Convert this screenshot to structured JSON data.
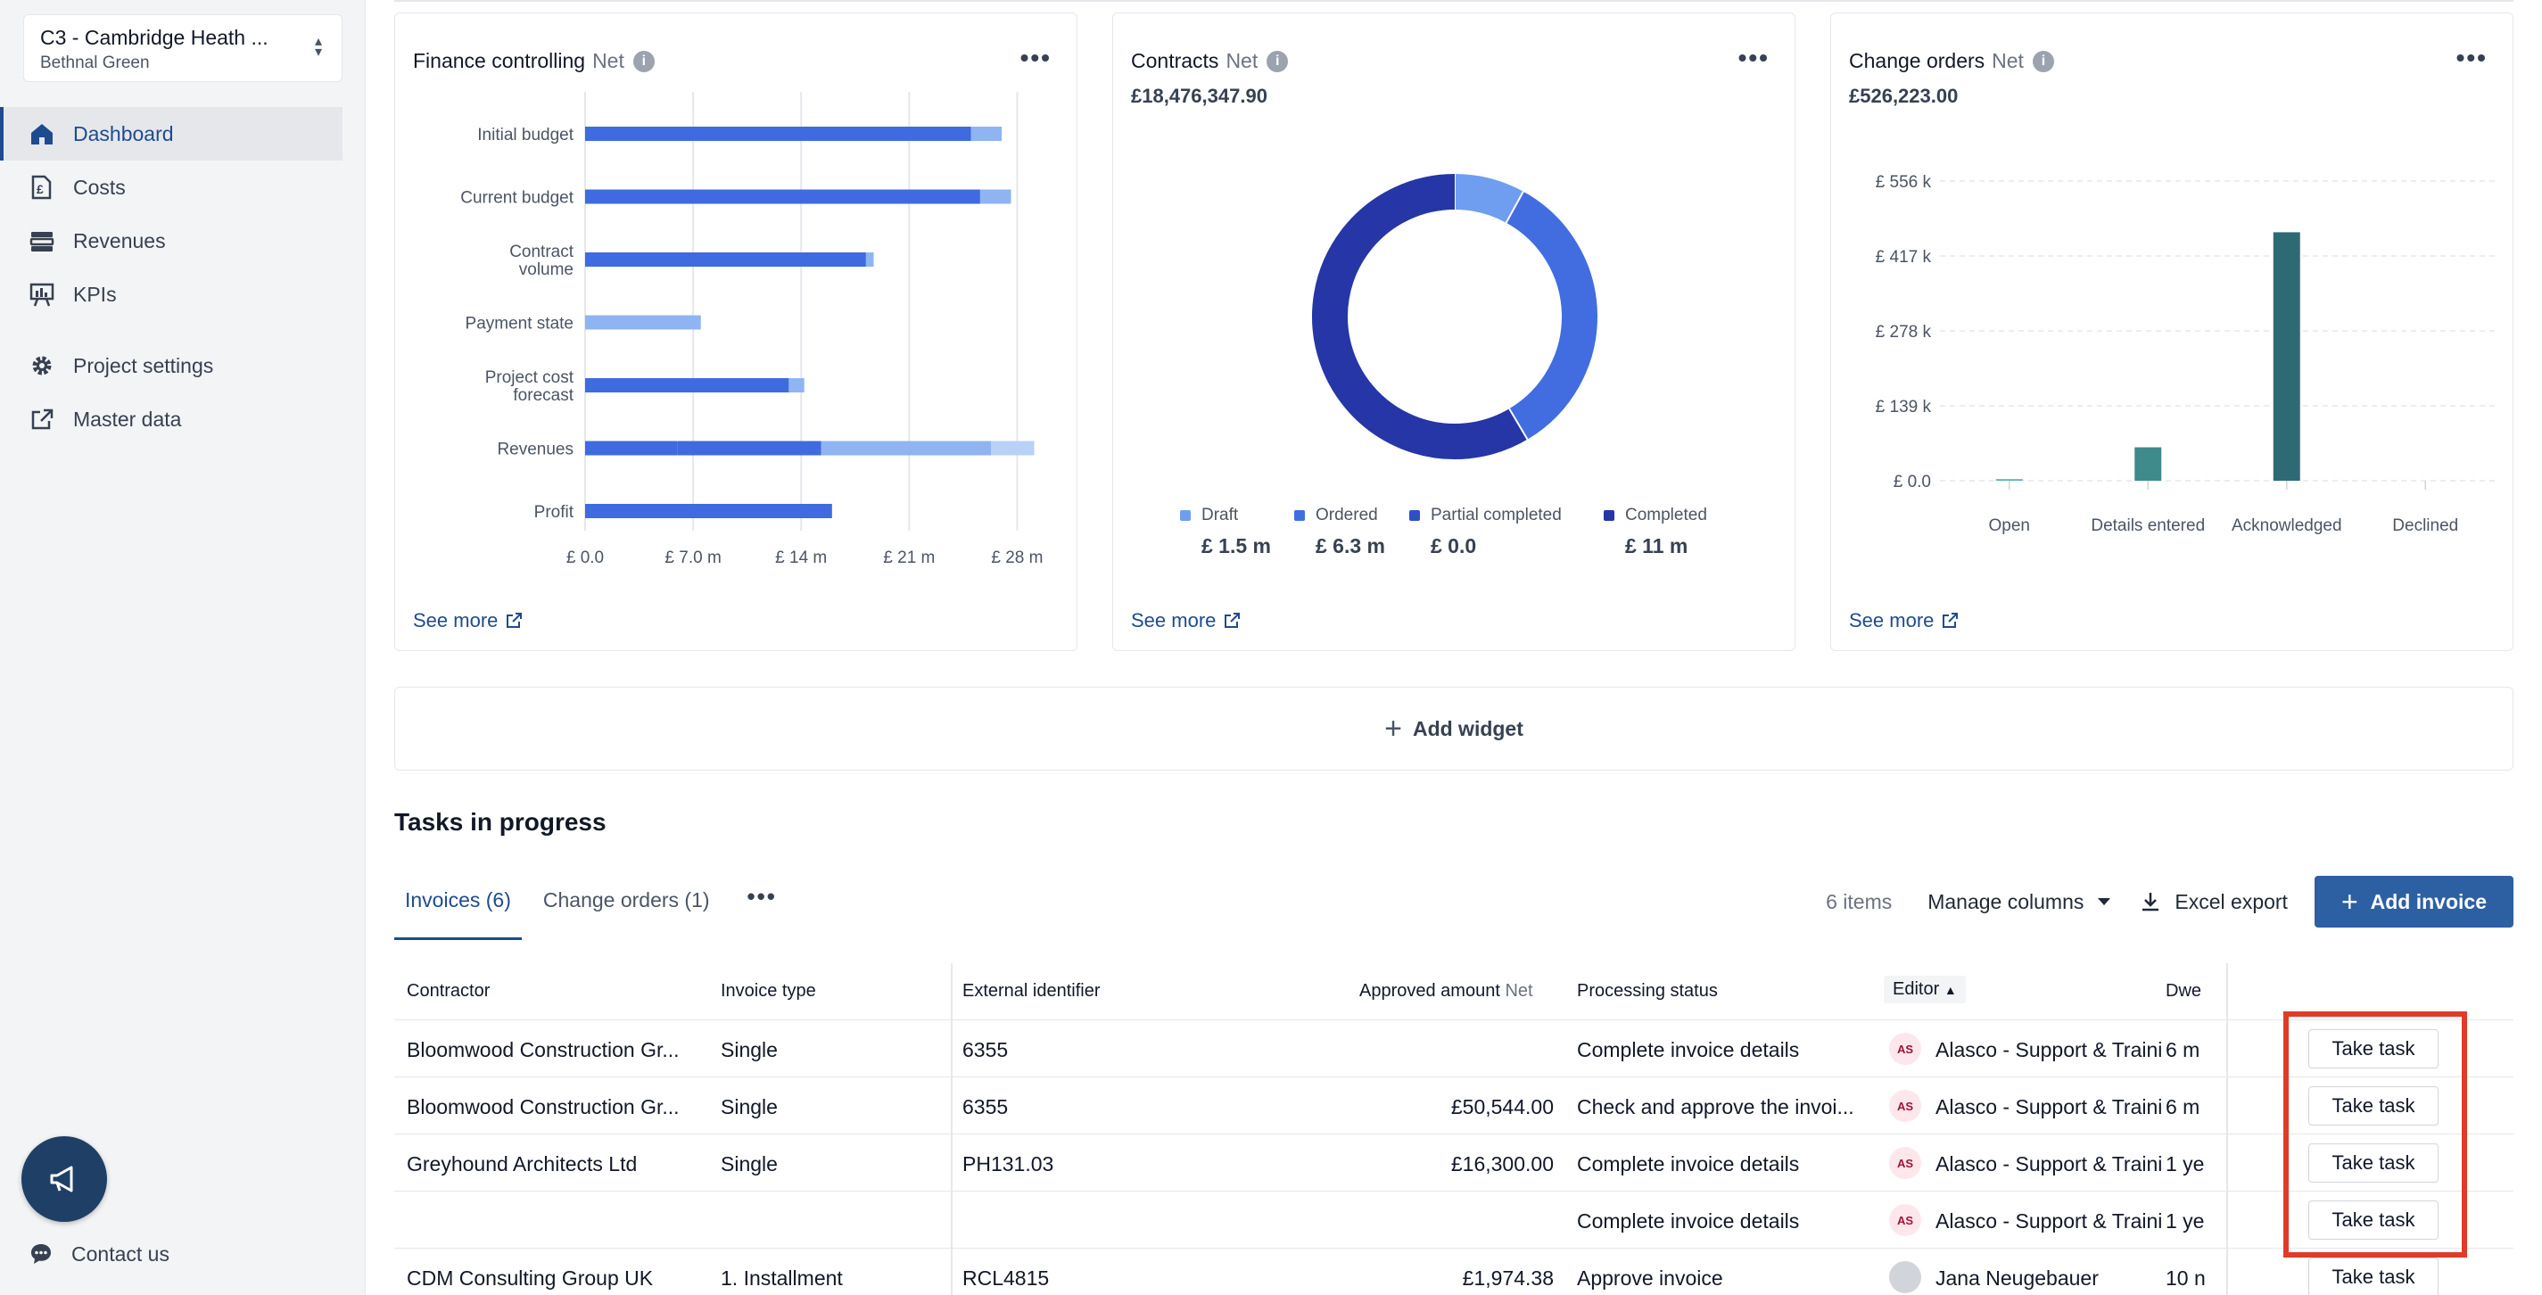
{
  "sidebar": {
    "project_name": "C3 - Cambridge Heath ...",
    "project_location": "Bethnal Green",
    "nav": [
      {
        "label": "Dashboard",
        "icon": "home-icon",
        "active": true
      },
      {
        "label": "Costs",
        "icon": "costs-icon"
      },
      {
        "label": "Revenues",
        "icon": "revenues-icon"
      },
      {
        "label": "KPIs",
        "icon": "kpi-icon"
      }
    ],
    "settings": [
      {
        "label": "Project settings",
        "icon": "gear-icon"
      },
      {
        "label": "Master data",
        "icon": "external-link-icon"
      }
    ],
    "contact_label": "Contact us"
  },
  "widgets": {
    "finance": {
      "title": "Finance controlling",
      "net": "Net",
      "see_more": "See more"
    },
    "contracts": {
      "title": "Contracts",
      "net": "Net",
      "total": "£18,476,347.90",
      "see_more": "See more"
    },
    "change_orders": {
      "title": "Change orders",
      "net": "Net",
      "total": "£526,223.00",
      "see_more": "See more"
    }
  },
  "chart_data": [
    {
      "type": "bar",
      "orientation": "horizontal",
      "stacked": true,
      "categories": [
        "Initial budget",
        "Current budget",
        "Contract volume",
        "Payment state",
        "Project cost forecast",
        "Revenues",
        "Profit"
      ],
      "series": [
        {
          "values": [
            25.0,
            25.6,
            18.2,
            0,
            13.2,
            6.0,
            16.0
          ],
          "color": "#3f6ae0"
        },
        {
          "values": [
            2.0,
            2.0,
            0.5,
            7.5,
            1.0,
            0,
            0
          ],
          "color": "#8fb4f2"
        },
        {
          "values": [
            0,
            0,
            0,
            0,
            0,
            9.3,
            0
          ],
          "color": "#3f6ae0"
        },
        {
          "values": [
            0,
            0,
            0,
            0,
            0,
            11.0,
            0
          ],
          "color": "#8fb4f2"
        },
        {
          "values": [
            0,
            0,
            0,
            0,
            0,
            2.8,
            0
          ],
          "color": "#b9d0f7"
        }
      ],
      "xlim": [
        0,
        31.5
      ],
      "xticks": [
        "£ 0.0",
        "£ 7.0 m",
        "£ 14 m",
        "£ 21 m",
        "£ 28 m"
      ],
      "grid": true
    },
    {
      "type": "pie",
      "donut": true,
      "slices": [
        {
          "label": "Draft",
          "value": 1.5,
          "display": "£ 1.5 m",
          "color": "#6f9ef0"
        },
        {
          "label": "Ordered",
          "value": 6.3,
          "display": "£ 6.3 m",
          "color": "#416de0"
        },
        {
          "label": "Partial completed",
          "value": 0.0,
          "display": "£ 0.0",
          "color": "#2f4fc6"
        },
        {
          "label": "Completed",
          "value": 11,
          "display": "£ 11 m",
          "color": "#2636a6"
        }
      ]
    },
    {
      "type": "bar",
      "categories": [
        "Open",
        "Details entered",
        "Acknowledged",
        "Declined"
      ],
      "values": [
        3,
        62,
        461,
        0
      ],
      "ylim": [
        0,
        556
      ],
      "yticks": [
        "£ 0.0",
        "£ 139 k",
        "£ 278 k",
        "£ 417 k",
        "£ 556 k"
      ],
      "colors": [
        "#5fb4b4",
        "#3f8a8a",
        "#2e6a74",
        "#2e6a74"
      ],
      "grid": true
    }
  ],
  "add_widget_label": "Add widget",
  "tasks": {
    "title": "Tasks in progress",
    "tabs": [
      {
        "label": "Invoices (6)",
        "active": true
      },
      {
        "label": "Change orders (1)"
      }
    ],
    "items_count": "6 items",
    "manage_columns": "Manage columns",
    "excel_export": "Excel export",
    "add_invoice": "Add invoice",
    "columns": {
      "contractor": "Contractor",
      "invoice_type": "Invoice type",
      "external_id": "External identifier",
      "approved_amount": "Approved amount",
      "net": "Net",
      "processing_status": "Processing status",
      "editor": "Editor",
      "dwell": "Dwe"
    },
    "take_task_label": "Take task",
    "rows": [
      {
        "contractor": "Bloomwood Construction Gr...",
        "type": "Single",
        "ext_id": "6355",
        "amount": "",
        "status": "Complete invoice details",
        "avatar": "AS",
        "editor": "Alasco - Support & Trainin",
        "dwell": "6 m"
      },
      {
        "contractor": "Bloomwood Construction Gr...",
        "type": "Single",
        "ext_id": "6355",
        "amount": "£50,544.00",
        "status": "Check and approve the invoi...",
        "avatar": "AS",
        "editor": "Alasco - Support & Trainin",
        "dwell": "6 m"
      },
      {
        "contractor": "Greyhound Architects Ltd",
        "type": "Single",
        "ext_id": "PH131.03",
        "amount": "£16,300.00",
        "status": "Complete invoice details",
        "avatar": "AS",
        "editor": "Alasco - Support & Trainin",
        "dwell": "1 ye"
      },
      {
        "contractor": "",
        "type": "",
        "ext_id": "",
        "amount": "",
        "status": "Complete invoice details",
        "avatar": "AS",
        "editor": "Alasco - Support & Trainin",
        "dwell": "1 ye"
      },
      {
        "contractor": "CDM Consulting Group UK",
        "type": "1. Installment",
        "ext_id": "RCL4815",
        "amount": "£1,974.38",
        "status": "Approve invoice",
        "avatar": "",
        "editor": "Jana Neugebauer",
        "dwell": "10 n"
      }
    ]
  }
}
